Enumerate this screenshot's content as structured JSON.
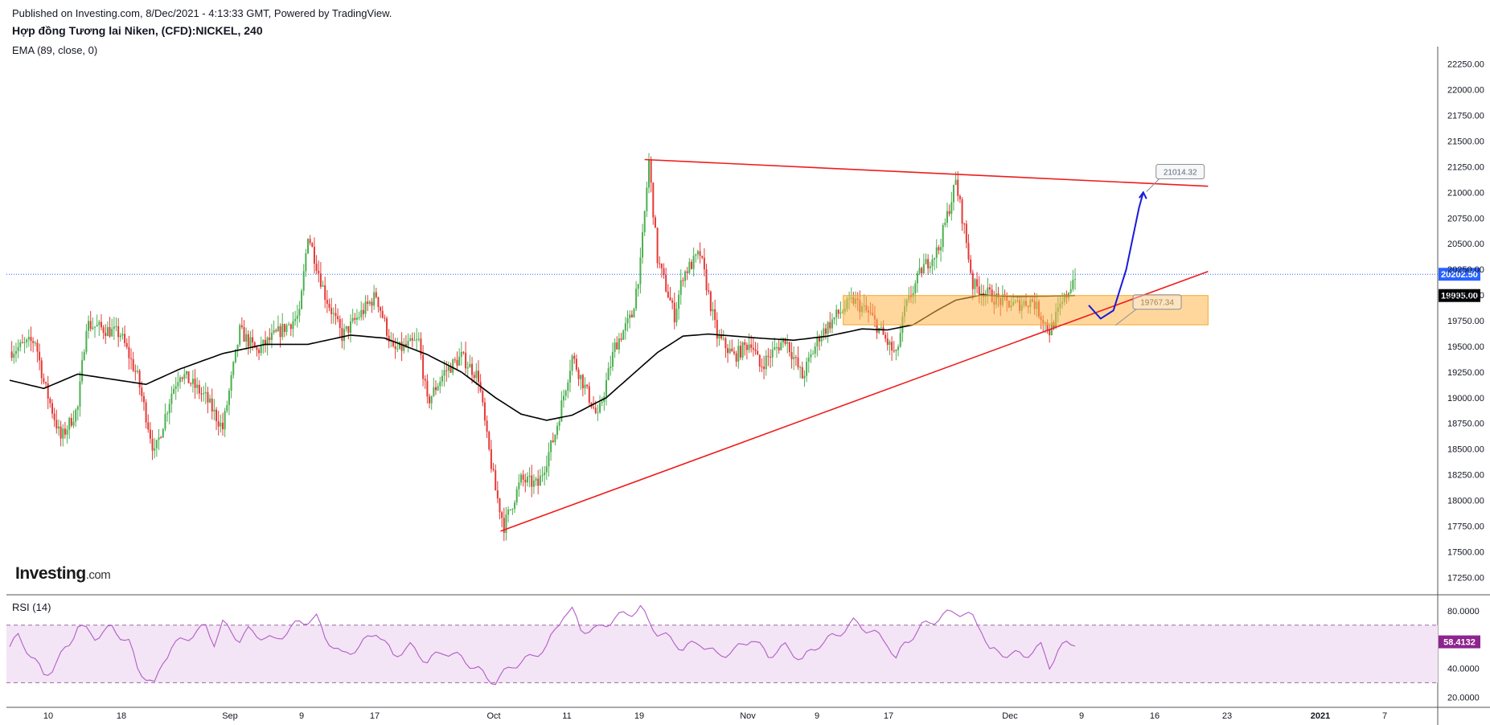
{
  "header": {
    "published": "Published on Investing.com, 8/Dec/2021 - 4:13:33 GMT, Powered by TradingView.",
    "title": "Hợp đồng Tương lai Niken, (CFD):NICKEL, 240"
  },
  "indicators": {
    "ema_label": "EMA (89, close, 0)",
    "rsi_label": "RSI (14)"
  },
  "logo": {
    "brand": "Investing",
    "suffix": ".com"
  },
  "colors": {
    "up": "#4caf50",
    "down": "#e53935",
    "trendline": "#ef1c1c",
    "ema": "#000000",
    "zone": "#ffb74d",
    "arrow": "#1a1adb",
    "rsi": "#b35cc9",
    "rsi_band": "#f3e5f5",
    "price_tag": "#2962ff",
    "rsi_tag": "#8e248e"
  },
  "chart_data": {
    "type": "candlestick",
    "title": "Hợp đồng Tương lai Niken, (CFD):NICKEL, 240",
    "price_axis": {
      "ticks": [
        "22250.00",
        "22000.00",
        "21750.00",
        "21500.00",
        "21250.00",
        "21000.00",
        "20750.00",
        "20500.00",
        "20250.00",
        "20000.00",
        "19750.00",
        "19500.00",
        "19250.00",
        "19000.00",
        "18750.00",
        "18500.00",
        "18250.00",
        "18000.00",
        "17750.00",
        "17500.00",
        "17250.00"
      ],
      "ylim": [
        17080,
        22420
      ]
    },
    "time_axis": {
      "labels": [
        "10",
        "18",
        "Sep",
        "9",
        "17",
        "Oct",
        "11",
        "19",
        "Nov",
        "9",
        "17",
        "Dec",
        "9",
        "16",
        "23",
        "2021",
        "7"
      ]
    },
    "last_price": {
      "value": 20202.5,
      "label": "20202.50"
    },
    "ema_last": {
      "value": 19995,
      "label": "19995.00"
    },
    "price_path": [
      [
        0,
        19450
      ],
      [
        3,
        19560
      ],
      [
        4,
        19150
      ],
      [
        6,
        18600
      ],
      [
        8,
        18900
      ],
      [
        9,
        19720
      ],
      [
        13,
        19620
      ],
      [
        15,
        19200
      ],
      [
        17,
        18450
      ],
      [
        19,
        19050
      ],
      [
        20,
        19250
      ],
      [
        23,
        19000
      ],
      [
        25,
        18700
      ],
      [
        27,
        19650
      ],
      [
        29,
        19450
      ],
      [
        31,
        19600
      ],
      [
        34,
        19800
      ],
      [
        35,
        20600
      ],
      [
        37,
        20000
      ],
      [
        39,
        19600
      ],
      [
        43,
        20000
      ],
      [
        45,
        19450
      ],
      [
        48,
        19550
      ],
      [
        49,
        18950
      ],
      [
        51,
        19250
      ],
      [
        53,
        19400
      ],
      [
        55,
        19200
      ],
      [
        56,
        18600
      ],
      [
        57,
        18100
      ],
      [
        58,
        17750
      ],
      [
        60,
        18200
      ],
      [
        62,
        18150
      ],
      [
        64,
        18650
      ],
      [
        66,
        19400
      ],
      [
        69,
        18800
      ],
      [
        71,
        19500
      ],
      [
        73,
        19800
      ],
      [
        74,
        20300
      ],
      [
        75,
        21300
      ],
      [
        76,
        20350
      ],
      [
        78,
        19800
      ],
      [
        79,
        20200
      ],
      [
        81,
        20400
      ],
      [
        83,
        19600
      ],
      [
        85,
        19400
      ],
      [
        87,
        19550
      ],
      [
        88,
        19300
      ],
      [
        91,
        19580
      ],
      [
        93,
        19200
      ],
      [
        95,
        19600
      ],
      [
        97,
        19800
      ],
      [
        99,
        19950
      ],
      [
        101,
        19800
      ],
      [
        104,
        19400
      ],
      [
        105,
        19850
      ],
      [
        107,
        20250
      ],
      [
        109,
        20450
      ],
      [
        111,
        21100
      ],
      [
        112,
        20650
      ],
      [
        113,
        20100
      ],
      [
        115,
        20000
      ],
      [
        116,
        19950
      ],
      [
        118,
        19900
      ],
      [
        120,
        19950
      ],
      [
        122,
        19650
      ],
      [
        124,
        20000
      ],
      [
        125,
        20202
      ]
    ],
    "ema_path": [
      [
        0,
        19170
      ],
      [
        4,
        19090
      ],
      [
        8,
        19230
      ],
      [
        12,
        19180
      ],
      [
        16,
        19130
      ],
      [
        20,
        19280
      ],
      [
        25,
        19430
      ],
      [
        30,
        19520
      ],
      [
        35,
        19520
      ],
      [
        40,
        19610
      ],
      [
        44,
        19580
      ],
      [
        49,
        19420
      ],
      [
        53,
        19250
      ],
      [
        57,
        19000
      ],
      [
        60,
        18840
      ],
      [
        63,
        18780
      ],
      [
        66,
        18830
      ],
      [
        70,
        19000
      ],
      [
        73,
        19220
      ],
      [
        76,
        19440
      ],
      [
        79,
        19600
      ],
      [
        82,
        19620
      ],
      [
        85,
        19600
      ],
      [
        88,
        19580
      ],
      [
        92,
        19560
      ],
      [
        96,
        19600
      ],
      [
        100,
        19670
      ],
      [
        103,
        19660
      ],
      [
        106,
        19710
      ],
      [
        109,
        19860
      ],
      [
        111,
        19950
      ],
      [
        114,
        20000
      ],
      [
        118,
        19985
      ],
      [
        122,
        19990
      ],
      [
        125,
        19995
      ]
    ],
    "trendlines": [
      {
        "name": "resistance",
        "from": [
          74.5,
          21320
        ],
        "to": [
          140.6,
          21060
        ]
      },
      {
        "name": "support",
        "from": [
          57.6,
          17700
        ],
        "to": [
          140.6,
          20230
        ]
      }
    ],
    "zone": {
      "from": 97.8,
      "to": 140.6,
      "low": 19710,
      "high": 19995,
      "label": "19767.34"
    },
    "callouts": [
      {
        "label": "21014.32",
        "x": 134.5,
        "price": 21210
      },
      {
        "label": "19767.34",
        "x": 131.8,
        "price": 19940
      }
    ],
    "projection": [
      [
        126.6,
        19900
      ],
      [
        128,
        19770
      ],
      [
        129.5,
        19850
      ],
      [
        131,
        20250
      ],
      [
        132.5,
        20850
      ],
      [
        133,
        21000
      ]
    ],
    "rsi": {
      "label": "RSI (14)",
      "ticks": [
        "80.0000",
        "40.0000",
        "20.0000"
      ],
      "upper_band": 70,
      "lower_band": 30,
      "last_label": "58.4132",
      "path": [
        [
          0,
          55
        ],
        [
          1,
          62
        ],
        [
          3,
          45
        ],
        [
          4,
          35
        ],
        [
          5,
          40
        ],
        [
          7,
          57
        ],
        [
          8,
          70
        ],
        [
          10,
          62
        ],
        [
          12,
          68
        ],
        [
          14,
          58
        ],
        [
          15,
          40
        ],
        [
          17,
          28
        ],
        [
          18,
          45
        ],
        [
          19,
          55
        ],
        [
          21,
          62
        ],
        [
          23,
          69
        ],
        [
          24,
          58
        ],
        [
          25,
          71
        ],
        [
          27,
          60
        ],
        [
          28,
          66
        ],
        [
          31,
          59
        ],
        [
          34,
          72
        ],
        [
          36,
          75
        ],
        [
          37,
          62
        ],
        [
          39,
          49
        ],
        [
          41,
          55
        ],
        [
          43,
          66
        ],
        [
          45,
          49
        ],
        [
          47,
          55
        ],
        [
          49,
          45
        ],
        [
          51,
          52
        ],
        [
          53,
          47
        ],
        [
          55,
          39
        ],
        [
          56,
          33
        ],
        [
          57,
          31
        ],
        [
          59,
          42
        ],
        [
          61,
          47
        ],
        [
          63,
          55
        ],
        [
          64,
          66
        ],
        [
          65,
          78
        ],
        [
          66,
          80
        ],
        [
          67,
          67
        ],
        [
          69,
          67
        ],
        [
          71,
          75
        ],
        [
          73,
          79
        ],
        [
          74,
          82
        ],
        [
          75,
          72
        ],
        [
          76,
          65
        ],
        [
          77,
          62
        ],
        [
          79,
          54
        ],
        [
          81,
          58
        ],
        [
          83,
          49
        ],
        [
          85,
          52
        ],
        [
          87,
          61
        ],
        [
          89,
          49
        ],
        [
          91,
          55
        ],
        [
          93,
          46
        ],
        [
          95,
          57
        ],
        [
          97,
          63
        ],
        [
          99,
          72
        ],
        [
          101,
          66
        ],
        [
          103,
          58
        ],
        [
          104,
          46
        ],
        [
          105,
          57
        ],
        [
          107,
          69
        ],
        [
          109,
          75
        ],
        [
          111,
          80
        ],
        [
          113,
          75
        ],
        [
          114,
          68
        ],
        [
          115,
          52
        ],
        [
          117,
          50
        ],
        [
          119,
          49
        ],
        [
          121,
          55
        ],
        [
          122,
          42
        ],
        [
          123,
          52
        ],
        [
          124,
          57
        ],
        [
          125,
          58.4
        ]
      ]
    }
  }
}
